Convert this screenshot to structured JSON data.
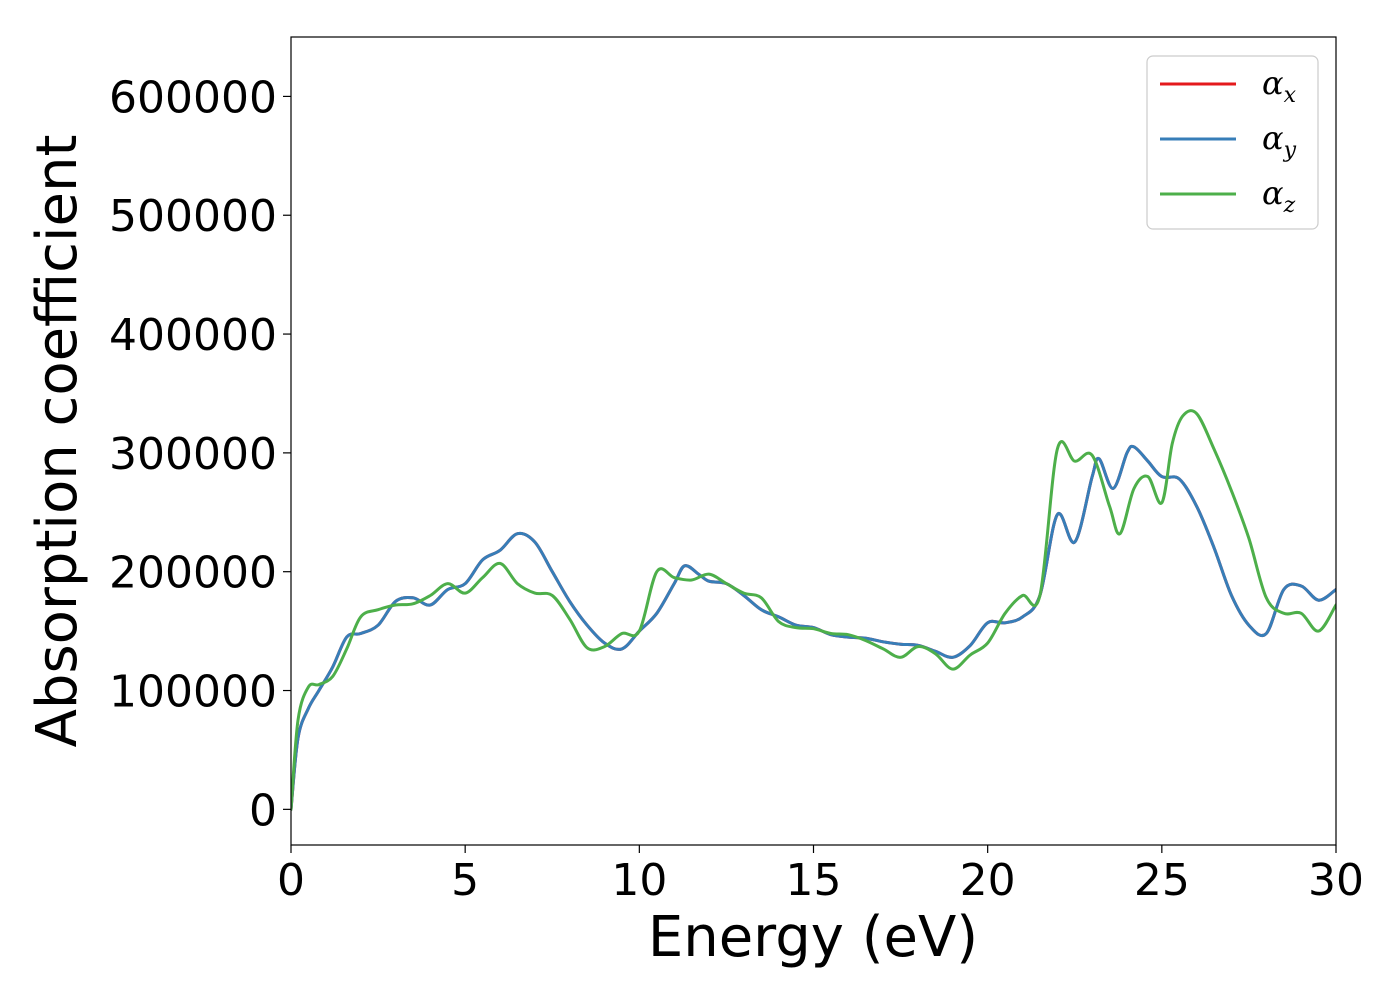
{
  "chart_data": {
    "type": "line",
    "xlabel": "Energy (eV)",
    "ylabel": "Absorption coefficient",
    "xlim": [
      0,
      30
    ],
    "ylim": [
      -30000,
      650000
    ],
    "xticks": [
      0,
      5,
      10,
      15,
      20,
      25,
      30
    ],
    "yticks": [
      0,
      100000,
      200000,
      300000,
      400000,
      500000,
      600000
    ],
    "grid": false,
    "legend_position": "top-right",
    "series": [
      {
        "name": "αx",
        "legend_symbol": "α",
        "legend_subscript": "x",
        "color": "#e41a1c",
        "x": [
          0,
          0.2,
          0.5,
          0.8,
          1.2,
          1.6,
          2,
          2.5,
          3,
          3.5,
          4,
          4.5,
          5,
          5.5,
          6,
          6.5,
          7,
          7.5,
          8,
          8.5,
          9,
          9.5,
          10,
          10.5,
          11,
          11.3,
          11.7,
          12,
          12.5,
          13,
          13.5,
          14,
          14.5,
          15,
          15.5,
          16,
          16.5,
          17,
          17.5,
          18,
          18.5,
          19,
          19.5,
          20,
          20.5,
          21,
          21.5,
          22,
          22.5,
          23,
          23.2,
          23.6,
          24,
          24.2,
          24.6,
          25,
          25.5,
          26,
          26.5,
          27,
          27.5,
          28,
          28.5,
          29,
          29.5,
          30
        ],
        "y": [
          0,
          60000,
          85000,
          100000,
          120000,
          145000,
          148000,
          155000,
          175000,
          178000,
          172000,
          185000,
          190000,
          210000,
          218000,
          232000,
          225000,
          200000,
          175000,
          155000,
          140000,
          135000,
          150000,
          165000,
          190000,
          205000,
          198000,
          192000,
          190000,
          180000,
          168000,
          162000,
          155000,
          153000,
          147000,
          145000,
          144000,
          141000,
          139000,
          138000,
          133000,
          128000,
          138000,
          157000,
          157000,
          162000,
          180000,
          248000,
          225000,
          280000,
          295000,
          270000,
          300000,
          305000,
          293000,
          280000,
          278000,
          255000,
          220000,
          180000,
          155000,
          148000,
          185000,
          188000,
          176000,
          185000
        ]
      },
      {
        "name": "αy",
        "legend_symbol": "α",
        "legend_subscript": "y",
        "color": "#377eb8",
        "x": [
          0,
          0.2,
          0.5,
          0.8,
          1.2,
          1.6,
          2,
          2.5,
          3,
          3.5,
          4,
          4.5,
          5,
          5.5,
          6,
          6.5,
          7,
          7.5,
          8,
          8.5,
          9,
          9.5,
          10,
          10.5,
          11,
          11.3,
          11.7,
          12,
          12.5,
          13,
          13.5,
          14,
          14.5,
          15,
          15.5,
          16,
          16.5,
          17,
          17.5,
          18,
          18.5,
          19,
          19.5,
          20,
          20.5,
          21,
          21.5,
          22,
          22.5,
          23,
          23.2,
          23.6,
          24,
          24.2,
          24.6,
          25,
          25.5,
          26,
          26.5,
          27,
          27.5,
          28,
          28.5,
          29,
          29.5,
          30
        ],
        "y": [
          0,
          60000,
          85000,
          100000,
          120000,
          145000,
          148000,
          155000,
          175000,
          178000,
          172000,
          185000,
          190000,
          210000,
          218000,
          232000,
          225000,
          200000,
          175000,
          155000,
          140000,
          135000,
          150000,
          165000,
          190000,
          205000,
          198000,
          192000,
          190000,
          180000,
          168000,
          162000,
          155000,
          153000,
          147000,
          145000,
          144000,
          141000,
          139000,
          138000,
          133000,
          128000,
          138000,
          157000,
          157000,
          162000,
          180000,
          248000,
          225000,
          280000,
          295000,
          270000,
          300000,
          305000,
          293000,
          280000,
          278000,
          255000,
          220000,
          180000,
          155000,
          148000,
          185000,
          188000,
          176000,
          185000
        ]
      },
      {
        "name": "αz",
        "legend_symbol": "α",
        "legend_subscript": "z",
        "color": "#4daf4a",
        "x": [
          0,
          0.2,
          0.5,
          0.8,
          1.2,
          1.6,
          2,
          2.5,
          3,
          3.5,
          4,
          4.5,
          5,
          5.5,
          6,
          6.5,
          7,
          7.5,
          8,
          8.5,
          9,
          9.5,
          10,
          10.5,
          11,
          11.5,
          12,
          12.5,
          13,
          13.5,
          14,
          14.5,
          15,
          15.5,
          16,
          16.5,
          17,
          17.5,
          18,
          18.5,
          19,
          19.5,
          20,
          20.5,
          21,
          21.5,
          22,
          22.5,
          23,
          23.5,
          23.8,
          24.2,
          24.6,
          25,
          25.3,
          25.6,
          26,
          26.5,
          27,
          27.5,
          28,
          28.5,
          29,
          29.5,
          30
        ],
        "y": [
          0,
          75000,
          103000,
          105000,
          112000,
          135000,
          162000,
          168000,
          172000,
          173000,
          180000,
          190000,
          182000,
          195000,
          207000,
          190000,
          182000,
          180000,
          160000,
          136000,
          137000,
          148000,
          150000,
          200000,
          195000,
          193000,
          198000,
          190000,
          182000,
          178000,
          158000,
          153000,
          152000,
          148000,
          147000,
          142000,
          135000,
          128000,
          137000,
          131000,
          118000,
          130000,
          140000,
          165000,
          180000,
          180000,
          303000,
          293000,
          298000,
          255000,
          232000,
          270000,
          280000,
          258000,
          308000,
          331000,
          333000,
          303000,
          268000,
          228000,
          178000,
          165000,
          165000,
          150000,
          172000
        ]
      }
    ]
  }
}
